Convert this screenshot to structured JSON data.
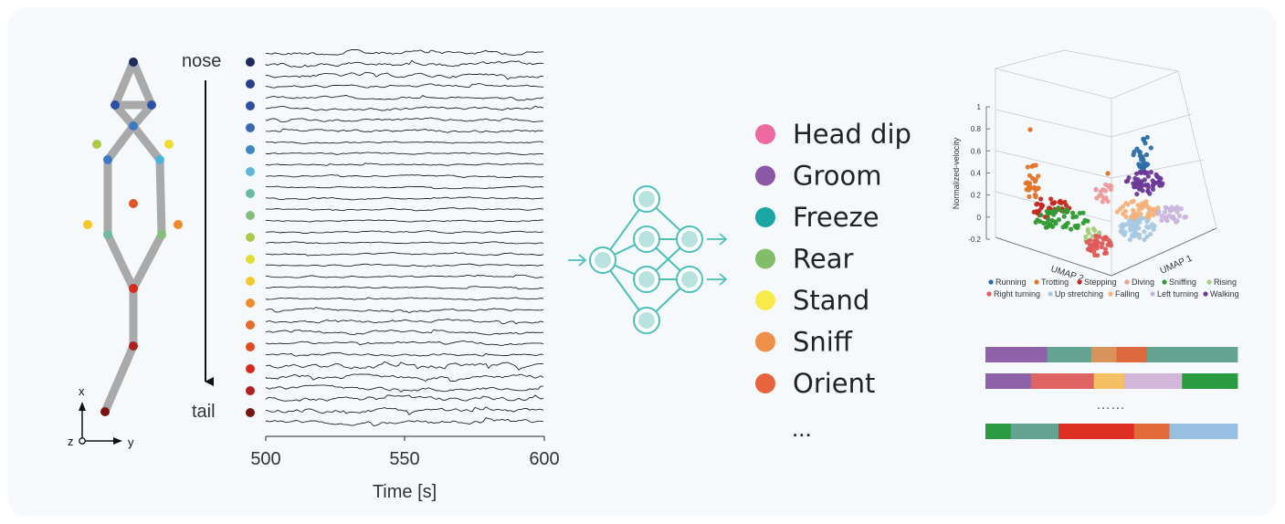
{
  "skeleton": {
    "axes": {
      "x_label": "x",
      "y_label": "y",
      "z_label": "z"
    },
    "node_colors": [
      "#1c2a5e",
      "#2e4fa6",
      "#3d79c2",
      "#a8cc4a",
      "#f0dc2a",
      "#4bb5d8",
      "#e0562a",
      "#f2c82a",
      "#ee8a2a",
      "#71bba3",
      "#82c07a",
      "#d62a1e",
      "#b1201e",
      "#7a1410"
    ]
  },
  "traces": {
    "nose_label": "nose",
    "tail_label": "tail",
    "marker_colors": [
      "#1c2a5e",
      "#243f8c",
      "#2e4fa6",
      "#3a67b5",
      "#3f86c6",
      "#5fb6d8",
      "#6fb9a3",
      "#82c07a",
      "#a8cc4a",
      "#e0dc32",
      "#f2c82a",
      "#ee8a2a",
      "#e86a2a",
      "#e04a22",
      "#d62a1e",
      "#b1201e",
      "#7a1410"
    ],
    "xlabel": "Time [s]",
    "xticks": [
      "500",
      "550",
      "600"
    ]
  },
  "network": {
    "color": "#4bbfb8",
    "fill": "#b7e2df"
  },
  "behaviors": {
    "items": [
      {
        "label": "Head dip",
        "color": "#ec6aa0"
      },
      {
        "label": "Groom",
        "color": "#8b58a6"
      },
      {
        "label": "Freeze",
        "color": "#1aa6a3"
      },
      {
        "label": "Rear",
        "color": "#82bd6a"
      },
      {
        "label": "Stand",
        "color": "#f7ea4a"
      },
      {
        "label": "Sniff",
        "color": "#ee8f4a"
      },
      {
        "label": "Orient",
        "color": "#e8633e"
      }
    ],
    "more": "..."
  },
  "umap": {
    "zlabel": "Normalized-velocity",
    "zticks": [
      "1",
      "0.8",
      "0.6",
      "0.4",
      "0.2",
      "0",
      "-0.2"
    ],
    "axis1_label": "UMAP 1",
    "axis2_label": "UMAP 2",
    "legend": [
      {
        "label": "Running",
        "color": "#2c6ea8"
      },
      {
        "label": "Trotting",
        "color": "#e3742a"
      },
      {
        "label": "Stepping",
        "color": "#c22a22"
      },
      {
        "label": "Diving",
        "color": "#ee9a9a"
      },
      {
        "label": "Sniffing",
        "color": "#2f9a30"
      },
      {
        "label": "Rising",
        "color": "#a4d07a"
      },
      {
        "label": "Right turning",
        "color": "#e05a5a"
      },
      {
        "label": "Up stretching",
        "color": "#a8c8e2"
      },
      {
        "label": "Falling",
        "color": "#f5b27a"
      },
      {
        "label": "Left turning",
        "color": "#c8b6dc"
      },
      {
        "label": "Walking",
        "color": "#6a3a98"
      }
    ]
  },
  "ethograms": {
    "ellipsis": "……",
    "rows": [
      {
        "segments": [
          {
            "color": "#8e62a8",
            "frac": 0.245
          },
          {
            "color": "#64a390",
            "frac": 0.175
          },
          {
            "color": "#d8925a",
            "frac": 0.1
          },
          {
            "color": "#dc6a3e",
            "frac": 0.12
          },
          {
            "color": "#64a390",
            "frac": 0.36
          }
        ]
      },
      {
        "segments": [
          {
            "color": "#8e62a8",
            "frac": 0.18
          },
          {
            "color": "#de6464",
            "frac": 0.25
          },
          {
            "color": "#f4c062",
            "frac": 0.12
          },
          {
            "color": "#d2b6da",
            "frac": 0.23
          },
          {
            "color": "#2a9a40",
            "frac": 0.22
          }
        ]
      },
      {
        "segments": [
          {
            "color": "#2a9a40",
            "frac": 0.1
          },
          {
            "color": "#64a390",
            "frac": 0.19
          },
          {
            "color": "#de2f22",
            "frac": 0.3
          },
          {
            "color": "#e26a38",
            "frac": 0.14
          },
          {
            "color": "#98c0e2",
            "frac": 0.27
          }
        ]
      }
    ]
  }
}
